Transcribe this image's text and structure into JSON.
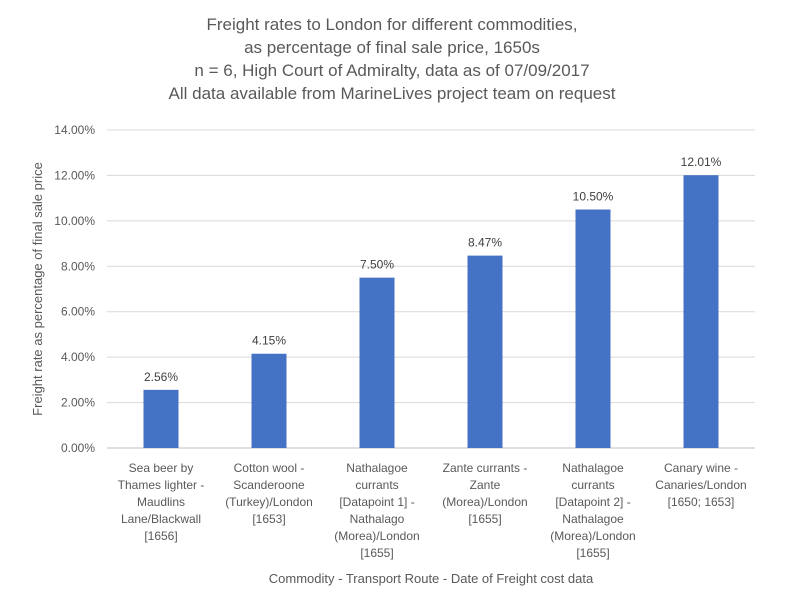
{
  "chart_data": {
    "type": "bar",
    "title_lines": [
      "Freight rates to London for different commodities,",
      "as percentage of final sale price, 1650s",
      "n = 6, High Court of Admiralty, data as of 07/09/2017",
      "All data available from MarineLives project team on request"
    ],
    "xlabel": "Commodity - Transport Route - Date of Freight cost data",
    "ylabel": "Freight rate as percentage of final sale price",
    "ylim": [
      0,
      14
    ],
    "yticks": [
      0,
      2,
      4,
      6,
      8,
      10,
      12,
      14
    ],
    "ytick_labels": [
      "0.00%",
      "2.00%",
      "4.00%",
      "6.00%",
      "8.00%",
      "10.00%",
      "12.00%",
      "14.00%"
    ],
    "grid": true,
    "bar_color": "#4472C4",
    "categories": [
      [
        "Sea beer by",
        "Thames lighter -",
        "Maudlins",
        "Lane/Blackwall",
        "[1656]"
      ],
      [
        "Cotton wool -",
        "Scanderoone",
        "(Turkey)/London",
        "[1653]"
      ],
      [
        "Nathalagoe",
        "currants",
        "[Datapoint 1] -",
        "Nathalago",
        "(Morea)/London",
        "[1655]"
      ],
      [
        "Zante currants -",
        "Zante",
        "(Morea)/London",
        "[1655]"
      ],
      [
        "Nathalagoe",
        "currants",
        "[Datapoint 2] -",
        "Nathalagoe",
        "(Morea)/London",
        "[1655]"
      ],
      [
        "Canary wine -",
        "Canaries/London",
        "[1650; 1653]"
      ]
    ],
    "values": [
      2.56,
      4.15,
      7.5,
      8.47,
      10.5,
      12.01
    ],
    "data_labels": [
      "2.56%",
      "4.15%",
      "7.50%",
      "8.47%",
      "10.50%",
      "12.01%"
    ]
  }
}
